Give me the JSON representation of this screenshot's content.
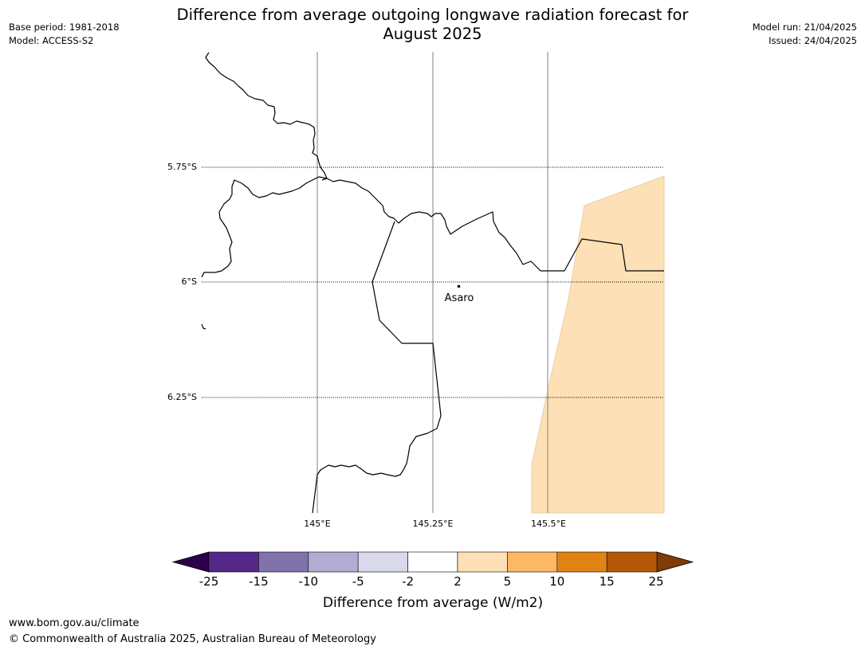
{
  "header": {
    "base_period": "Base period: 1981-2018",
    "model": "Model: ACCESS-S2",
    "title_line1": "Difference from average outgoing longwave radiation forecast for",
    "title_line2": "August 2025",
    "model_run": "Model run: 21/04/2025",
    "issued": "Issued: 24/04/2025"
  },
  "map": {
    "lat_labels": [
      "5.75°S",
      "6°S",
      "6.25°S"
    ],
    "lon_labels": [
      "145°E",
      "145.25°E",
      "145.5°E"
    ],
    "place": {
      "name": "Asaro",
      "lat": -6.01,
      "lon": 145.3
    },
    "anomaly_category": "2 to 5",
    "anomaly_color": "#fde0b6",
    "coastline_color": "#000000"
  },
  "legend": {
    "title": "Difference from average (W/m2)",
    "ticks": [
      "-25",
      "-15",
      "-10",
      "-5",
      "-2",
      "2",
      "5",
      "10",
      "15",
      "25"
    ],
    "under_color": "#2d004b",
    "over_color": "#7f3b08",
    "colors": [
      "#542788",
      "#8073ac",
      "#b2abd2",
      "#d8daeb",
      "#ffffff",
      "#fee0b6",
      "#fdb863",
      "#e08214",
      "#b35806"
    ]
  },
  "footer": {
    "url": "www.bom.gov.au/climate",
    "copyright": "© Commonwealth of Australia 2025, Australian Bureau of Meteorology"
  }
}
